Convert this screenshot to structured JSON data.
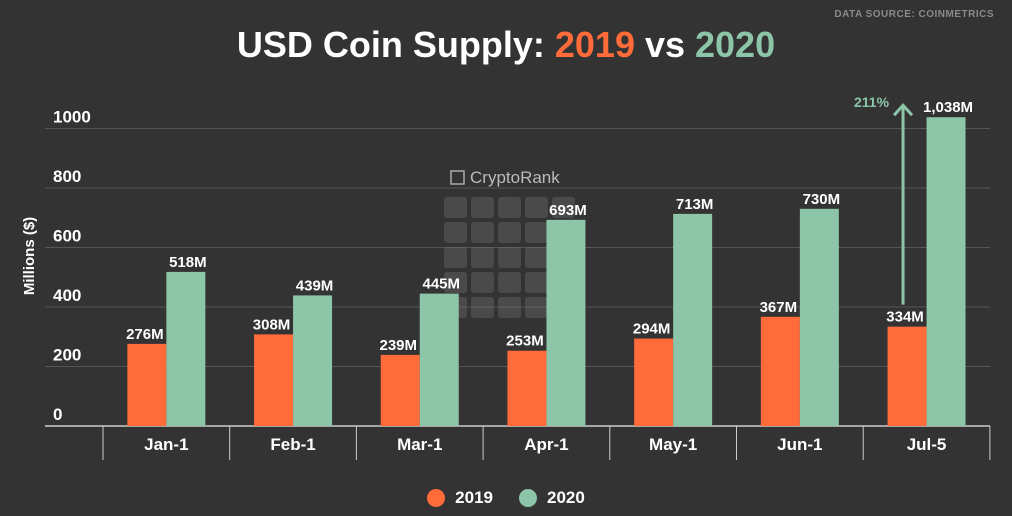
{
  "source_label": "DATA SOURCE: COINMETRICS",
  "title": {
    "prefix": "USD Coin Supply: ",
    "year1": "2019",
    "sep": " vs ",
    "year2": "2020"
  },
  "watermark": "CryptoRank",
  "colors": {
    "series_2019": "#ff6b39",
    "series_2020": "#8cc5a8",
    "background": "#333333",
    "grid": "#555555"
  },
  "chart_data": {
    "type": "bar",
    "categories": [
      "Jan-1",
      "Feb-1",
      "Mar-1",
      "Apr-1",
      "May-1",
      "Jun-1",
      "Jul-5"
    ],
    "series": [
      {
        "name": "2019",
        "values": [
          276,
          308,
          239,
          253,
          294,
          367,
          334
        ],
        "labels": [
          "276M",
          "308M",
          "239M",
          "253M",
          "294M",
          "367M",
          "334M"
        ]
      },
      {
        "name": "2020",
        "values": [
          518,
          439,
          445,
          693,
          713,
          730,
          1038
        ],
        "labels": [
          "518M",
          "439M",
          "445M",
          "693M",
          "713M",
          "730M",
          "1,038M"
        ]
      }
    ],
    "ylabel": "Millions ($)",
    "ylim": [
      0,
      1050
    ],
    "yticks": [
      0,
      200,
      400,
      600,
      800,
      1000
    ],
    "grid": true,
    "legend_position": "bottom",
    "annotation": {
      "text": "211%",
      "category": "Jul-5"
    }
  }
}
